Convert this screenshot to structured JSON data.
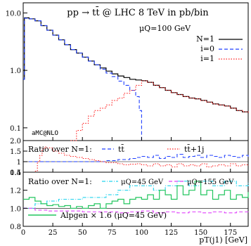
{
  "chart_data": [
    {
      "type": "line",
      "panel": "main",
      "title": "pp → tt̄ @ LHC 8 TeV in pb/bin",
      "scale_label": "μQ=100 GeV",
      "watermark": "aMC@NLO",
      "xlim": [
        0,
        190
      ],
      "ylim": [
        0.06,
        15
      ],
      "yscale": "log",
      "yticks": [
        0.1,
        1.0,
        10.0
      ],
      "ytick_labels": [
        "0.1",
        "1.0",
        "10.0"
      ],
      "legend_position": "top-right",
      "series": [
        {
          "name": "N=1",
          "color": "#000000",
          "style": "solid",
          "x": [
            0,
            1,
            5,
            10,
            15,
            20,
            25,
            30,
            35,
            40,
            45,
            50,
            55,
            60,
            65,
            70,
            75,
            80,
            85,
            90,
            95,
            100,
            105,
            110,
            115,
            120,
            125,
            130,
            135,
            140,
            145,
            150,
            155,
            160,
            165,
            170,
            175,
            180,
            185,
            190
          ],
          "y": [
            0.7,
            8.2,
            7.9,
            7.3,
            6.0,
            5.0,
            4.1,
            3.4,
            2.8,
            2.3,
            2.0,
            1.7,
            1.45,
            1.25,
            1.1,
            0.97,
            0.87,
            0.8,
            0.75,
            0.7,
            0.68,
            0.66,
            0.62,
            0.55,
            0.5,
            0.45,
            0.41,
            0.38,
            0.35,
            0.33,
            0.32,
            0.3,
            0.28,
            0.26,
            0.25,
            0.24,
            0.22,
            0.2,
            0.19,
            0.18
          ]
        },
        {
          "name": "i=0",
          "color": "#1f3fff",
          "style": "dashed",
          "x": [
            0,
            1,
            5,
            10,
            15,
            20,
            25,
            30,
            35,
            40,
            45,
            50,
            55,
            60,
            65,
            70,
            75,
            80,
            85,
            90,
            95,
            98,
            100
          ],
          "y": [
            0.7,
            8.1,
            7.9,
            7.3,
            6.0,
            5.0,
            4.1,
            3.4,
            2.8,
            2.3,
            2.0,
            1.7,
            1.45,
            1.25,
            1.05,
            0.9,
            0.78,
            0.65,
            0.55,
            0.45,
            0.35,
            0.2,
            0.06
          ]
        },
        {
          "name": "i=1",
          "color": "#ff2020",
          "style": "dotted",
          "x": [
            40,
            45,
            50,
            55,
            60,
            65,
            70,
            75,
            80,
            85,
            90,
            95,
            100,
            105,
            110,
            115,
            120,
            125,
            130,
            135,
            140,
            145,
            150,
            155,
            160,
            165,
            170,
            175,
            180,
            185,
            190
          ],
          "y": [
            0.06,
            0.09,
            0.12,
            0.16,
            0.2,
            0.22,
            0.25,
            0.3,
            0.33,
            0.4,
            0.45,
            0.55,
            0.66,
            0.62,
            0.55,
            0.5,
            0.45,
            0.41,
            0.38,
            0.35,
            0.33,
            0.32,
            0.3,
            0.28,
            0.26,
            0.25,
            0.24,
            0.22,
            0.2,
            0.19,
            0.18
          ]
        }
      ]
    },
    {
      "type": "line",
      "panel": "ratio-1",
      "label": "Ratio over N=1:",
      "xlim": [
        0,
        190
      ],
      "ylim": [
        0.5,
        2.0
      ],
      "yticks": [
        0.5,
        1,
        1.5,
        2.0
      ],
      "ytick_labels": [
        "0.5",
        "1",
        "1.5",
        "2.0"
      ],
      "series": [
        {
          "name": "tt̄",
          "color": "#1f3fff",
          "style": "dashed",
          "x": [
            0,
            5,
            10,
            20,
            30,
            40,
            50,
            60,
            70,
            80,
            90,
            95,
            100,
            105,
            110,
            115,
            120,
            125,
            130,
            135,
            140,
            145,
            150,
            155,
            160,
            165,
            170,
            175,
            180,
            185,
            190
          ],
          "y": [
            1.0,
            1.0,
            1.0,
            1.0,
            1.0,
            1.0,
            1.0,
            1.0,
            1.05,
            1.1,
            1.15,
            1.2,
            1.25,
            1.2,
            1.3,
            1.15,
            1.25,
            1.2,
            1.35,
            1.2,
            1.25,
            1.3,
            1.2,
            1.3,
            1.25,
            1.2,
            1.3,
            1.25,
            1.2,
            1.3,
            1.2
          ]
        },
        {
          "name": "tt̄+1j",
          "color": "#ff2020",
          "style": "dotted",
          "x": [
            10,
            12,
            14,
            16,
            18,
            20,
            25,
            30,
            35,
            40,
            45,
            50,
            55,
            60,
            65,
            70,
            75,
            80,
            85,
            90,
            95,
            100,
            105,
            110,
            115,
            120,
            125,
            130,
            135,
            140,
            145,
            150,
            155,
            160,
            165,
            170,
            175,
            180,
            185,
            190
          ],
          "y": [
            0.55,
            1.0,
            1.3,
            1.6,
            1.7,
            1.65,
            1.5,
            1.4,
            1.3,
            1.25,
            1.2,
            1.15,
            1.1,
            1.05,
            1.0,
            0.95,
            0.95,
            0.9,
            0.85,
            0.88,
            0.9,
            0.85,
            0.8,
            0.9,
            0.8,
            0.85,
            0.75,
            0.9,
            0.8,
            0.85,
            0.8,
            0.9,
            0.75,
            0.8,
            0.85,
            0.8,
            0.9,
            0.8,
            0.85,
            0.8
          ]
        }
      ]
    },
    {
      "type": "line",
      "panel": "ratio-2",
      "label": "Ratio over N=1:",
      "xlabel": "pT(j1) [GeV]",
      "xlim": [
        0,
        190
      ],
      "xticks": [
        0,
        25,
        50,
        75,
        100,
        125,
        150,
        175
      ],
      "ylim": [
        0.8,
        1.4
      ],
      "yticks": [
        0.8,
        1.0,
        1.2,
        1.4
      ],
      "ytick_labels": [
        "0.8",
        "1.0",
        "1.2",
        "1.4"
      ],
      "series": [
        {
          "name": "μQ=45 GeV",
          "color": "#22d3ee",
          "style": "dashdot",
          "x": [
            0,
            10,
            20,
            30,
            40,
            50,
            60,
            70,
            80,
            90,
            100,
            110,
            120,
            130,
            140,
            150,
            160,
            170,
            180,
            190
          ],
          "y": [
            1.0,
            1.05,
            1.08,
            1.1,
            1.1,
            1.12,
            1.12,
            1.15,
            1.2,
            1.25,
            1.25,
            1.2,
            1.25,
            1.3,
            1.25,
            1.3,
            1.25,
            1.3,
            1.25,
            1.3
          ]
        },
        {
          "name": "μQ=155 GeV",
          "color": "#e040fb",
          "style": "dashed",
          "x": [
            0,
            10,
            20,
            30,
            40,
            50,
            60,
            70,
            80,
            90,
            100,
            110,
            120,
            130,
            140,
            150,
            160,
            170,
            180,
            190
          ],
          "y": [
            1.0,
            0.98,
            0.97,
            0.97,
            0.97,
            0.96,
            0.96,
            0.96,
            0.95,
            0.96,
            0.97,
            0.95,
            0.96,
            0.95,
            0.96,
            0.95,
            0.96,
            0.95,
            0.96,
            0.95
          ]
        },
        {
          "name": "Alpgen × 1.6 (μQ=45 GeV)",
          "color": "#22c55e",
          "style": "solid",
          "x": [
            0,
            5,
            10,
            15,
            20,
            25,
            30,
            35,
            40,
            45,
            50,
            55,
            60,
            65,
            70,
            75,
            80,
            85,
            90,
            95,
            100,
            105,
            110,
            115,
            120,
            125,
            130,
            135,
            140,
            145,
            150,
            155,
            160,
            165,
            170,
            175,
            180,
            185,
            190
          ],
          "y": [
            1.1,
            1.12,
            1.08,
            1.05,
            1.03,
            1.04,
            1.02,
            1.03,
            1.0,
            1.02,
            1.0,
            1.03,
            1.05,
            1.0,
            1.05,
            1.08,
            1.1,
            1.05,
            1.1,
            1.12,
            1.1,
            1.15,
            1.1,
            1.2,
            1.15,
            1.1,
            1.25,
            1.15,
            1.2,
            1.3,
            1.15,
            1.2,
            1.1,
            1.15,
            1.2,
            1.1,
            1.15,
            1.12,
            1.18
          ]
        }
      ]
    }
  ]
}
